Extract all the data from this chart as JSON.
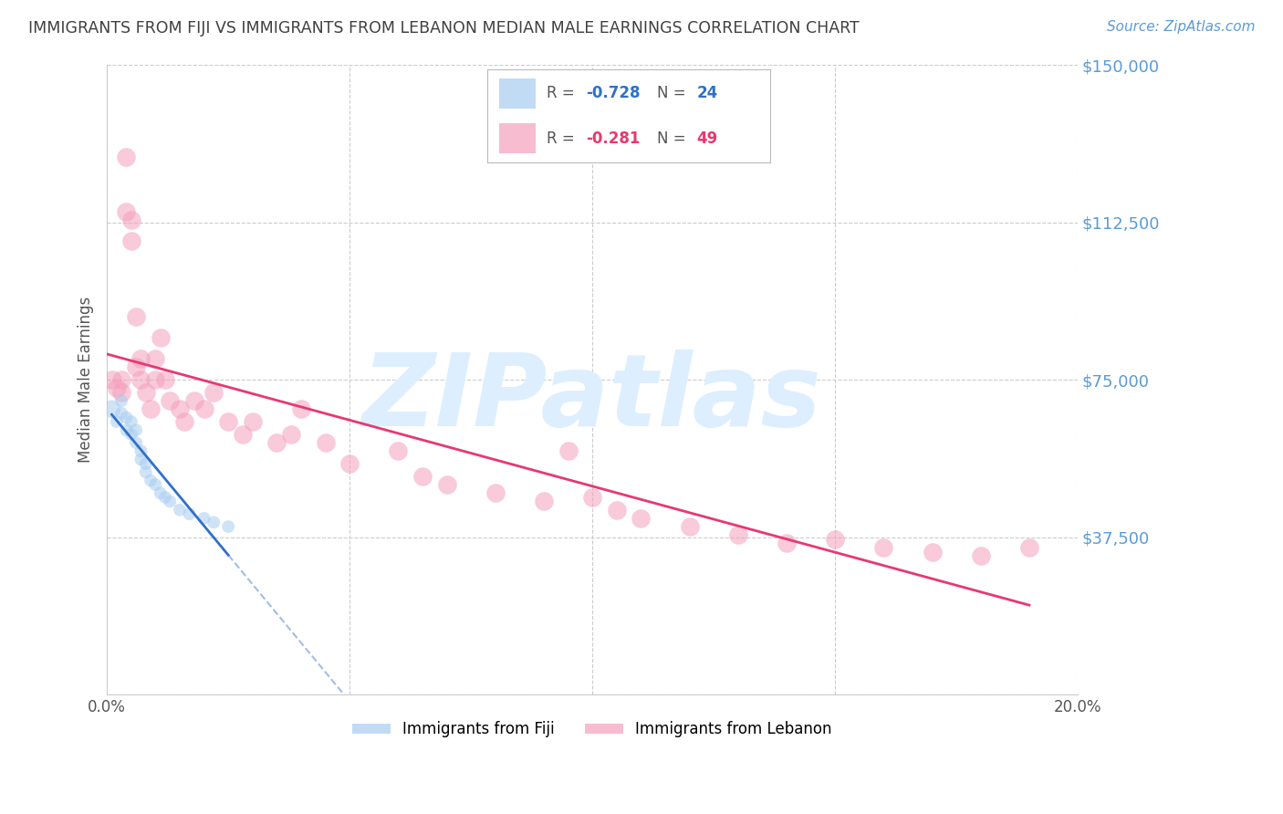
{
  "title": "IMMIGRANTS FROM FIJI VS IMMIGRANTS FROM LEBANON MEDIAN MALE EARNINGS CORRELATION CHART",
  "source": "Source: ZipAtlas.com",
  "ylabel": "Median Male Earnings",
  "xlim": [
    0.0,
    0.2
  ],
  "ylim": [
    0,
    150000
  ],
  "yticks": [
    0,
    37500,
    75000,
    112500,
    150000
  ],
  "ytick_labels": [
    "",
    "$37,500",
    "$75,000",
    "$112,500",
    "$150,000"
  ],
  "xticks": [
    0.0,
    0.05,
    0.1,
    0.15,
    0.2
  ],
  "xtick_labels": [
    "0.0%",
    "",
    "",
    "",
    "20.0%"
  ],
  "fiji_R": -0.728,
  "fiji_N": 24,
  "lebanon_R": -0.281,
  "lebanon_N": 49,
  "fiji_color": "#a8ccf0",
  "lebanon_color": "#f4a0bc",
  "fiji_line_color": "#3070c8",
  "lebanon_line_color": "#e83870",
  "background_color": "#ffffff",
  "grid_color": "#cccccc",
  "title_color": "#404040",
  "ylabel_color": "#555555",
  "ytick_label_color": "#5b9bd5",
  "xtick_label_color": "#555555",
  "watermark_color": "#ddeeff",
  "watermark_text": "ZIPatlas",
  "legend_fiji_label": "Immigrants from Fiji",
  "legend_lebanon_label": "Immigrants from Lebanon",
  "fiji_x": [
    0.001,
    0.002,
    0.003,
    0.003,
    0.004,
    0.004,
    0.005,
    0.005,
    0.006,
    0.006,
    0.007,
    0.007,
    0.008,
    0.008,
    0.009,
    0.01,
    0.011,
    0.012,
    0.013,
    0.015,
    0.017,
    0.02,
    0.022,
    0.025
  ],
  "fiji_y": [
    68000,
    65000,
    70000,
    67000,
    66000,
    63000,
    65000,
    62000,
    63000,
    60000,
    58000,
    56000,
    55000,
    53000,
    51000,
    50000,
    48000,
    47000,
    46000,
    44000,
    43000,
    42000,
    41000,
    40000
  ],
  "fiji_sizes": [
    200,
    100,
    100,
    100,
    100,
    100,
    100,
    100,
    100,
    100,
    100,
    100,
    100,
    100,
    100,
    100,
    100,
    100,
    100,
    100,
    100,
    100,
    100,
    100
  ],
  "lebanon_x": [
    0.001,
    0.002,
    0.003,
    0.003,
    0.004,
    0.004,
    0.005,
    0.005,
    0.006,
    0.006,
    0.007,
    0.007,
    0.008,
    0.009,
    0.01,
    0.01,
    0.011,
    0.012,
    0.013,
    0.015,
    0.016,
    0.018,
    0.02,
    0.022,
    0.025,
    0.028,
    0.03,
    0.035,
    0.038,
    0.04,
    0.045,
    0.05,
    0.06,
    0.065,
    0.07,
    0.08,
    0.09,
    0.095,
    0.1,
    0.105,
    0.11,
    0.12,
    0.13,
    0.14,
    0.15,
    0.16,
    0.17,
    0.18,
    0.19
  ],
  "lebanon_y": [
    75000,
    73000,
    75000,
    72000,
    128000,
    115000,
    113000,
    108000,
    90000,
    78000,
    80000,
    75000,
    72000,
    68000,
    80000,
    75000,
    85000,
    75000,
    70000,
    68000,
    65000,
    70000,
    68000,
    72000,
    65000,
    62000,
    65000,
    60000,
    62000,
    68000,
    60000,
    55000,
    58000,
    52000,
    50000,
    48000,
    46000,
    58000,
    47000,
    44000,
    42000,
    40000,
    38000,
    36000,
    37000,
    35000,
    34000,
    33000,
    35000
  ]
}
